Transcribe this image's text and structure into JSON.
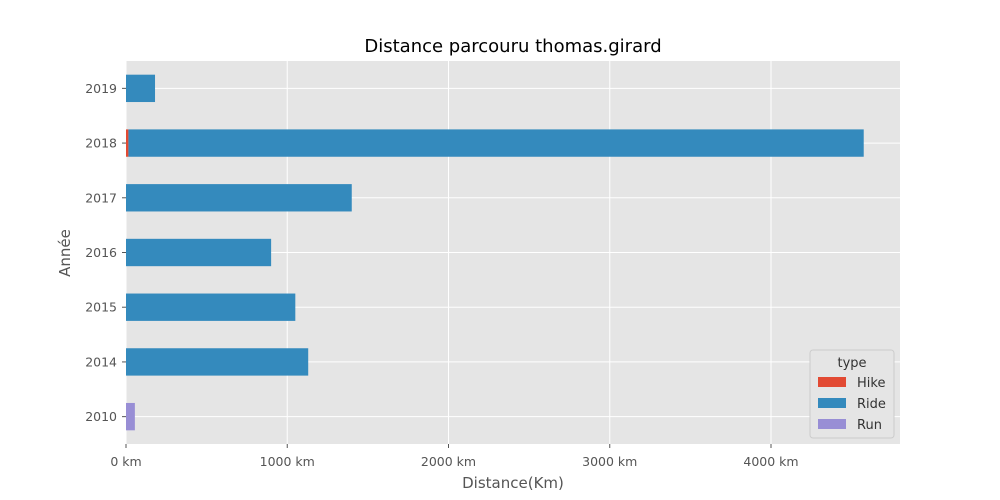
{
  "chart_data": {
    "type": "bar",
    "orientation": "horizontal",
    "stacked": true,
    "title": "Distance parcouru thomas.girard",
    "xlabel": "Distance(Km)",
    "ylabel": "Année",
    "categories": [
      "2010",
      "2014",
      "2015",
      "2016",
      "2017",
      "2018",
      "2019"
    ],
    "xlim": [
      0,
      4800
    ],
    "xticks": [
      0,
      1000,
      2000,
      3000,
      4000
    ],
    "xtick_labels": [
      "0 km",
      "1000 km",
      "2000 km",
      "3000 km",
      "4000 km"
    ],
    "grid": true,
    "legend": {
      "title": "type",
      "position": "bottom-right"
    },
    "series": [
      {
        "name": "Hike",
        "color": "#E24A33",
        "values": [
          0,
          0,
          0,
          0,
          0,
          15,
          0
        ]
      },
      {
        "name": "Ride",
        "color": "#348ABD",
        "values": [
          0,
          1130,
          1050,
          900,
          1400,
          4560,
          180
        ]
      },
      {
        "name": "Run",
        "color": "#988ED5",
        "values": [
          55,
          0,
          0,
          0,
          0,
          0,
          0
        ]
      }
    ]
  }
}
